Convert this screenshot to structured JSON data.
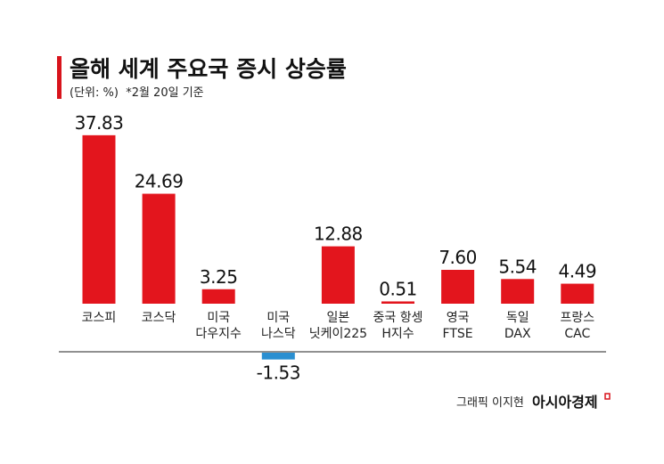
{
  "chart_data": {
    "type": "bar",
    "title": "올해 세계 주요국 증시 상승률",
    "subtitle": "(단위: %)  *2월 20일 기준",
    "categories": [
      [
        "코스피"
      ],
      [
        "코스닥"
      ],
      [
        "미국",
        "다우지수"
      ],
      [
        "미국",
        "나스닥"
      ],
      [
        "일본",
        "닛케이225"
      ],
      [
        "중국 항셍",
        "H지수"
      ],
      [
        "영국",
        "FTSE"
      ],
      [
        "독일",
        "DAX"
      ],
      [
        "프랑스",
        "CAC"
      ]
    ],
    "values": [
      37.83,
      24.69,
      3.25,
      -1.53,
      12.88,
      0.51,
      7.6,
      5.54,
      4.49
    ],
    "value_labels": [
      "37.83",
      "24.69",
      "3.25",
      "-1.53",
      "12.88",
      "0.51",
      "7.60",
      "5.54",
      "4.49"
    ],
    "xlabel": "",
    "ylabel": "",
    "grid": false,
    "colors": {
      "positive": "#e3151d",
      "negative": "#2a8fd1",
      "accent": "#d8141c"
    }
  },
  "footer": {
    "credit": "그래픽 이지현",
    "brand": "아시아경제"
  }
}
